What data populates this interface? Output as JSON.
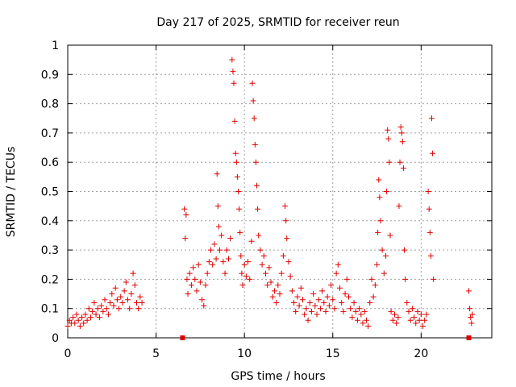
{
  "chart_data": {
    "type": "scatter",
    "title": "Day 217 of 2025, SRMTID for receiver reun",
    "xlabel": "GPS time / hours",
    "ylabel": "SRMTID / TECUs",
    "xlim": [
      0,
      24
    ],
    "ylim": [
      0,
      1
    ],
    "xticks": [
      0,
      5,
      10,
      15,
      20
    ],
    "xtick_labels": [
      "0",
      "5",
      "10",
      "15",
      "20"
    ],
    "yticks": [
      0,
      0.1,
      0.2,
      0.3,
      0.4,
      0.5,
      0.6,
      0.7,
      0.8,
      0.9,
      1
    ],
    "ytick_labels": [
      "0",
      "0.1",
      "0.2",
      "0.3",
      "0.4",
      "0.5",
      "0.6",
      "0.7",
      "0.8",
      "0.9",
      "1"
    ],
    "grid": true,
    "marker": "plus",
    "color": "#e00000",
    "series": [
      {
        "name": "SRMTID",
        "points": [
          [
            0.0,
            0.04
          ],
          [
            0.1,
            0.06
          ],
          [
            0.2,
            0.05
          ],
          [
            0.3,
            0.07
          ],
          [
            0.4,
            0.05
          ],
          [
            0.5,
            0.08
          ],
          [
            0.6,
            0.06
          ],
          [
            0.7,
            0.04
          ],
          [
            0.8,
            0.07
          ],
          [
            0.9,
            0.05
          ],
          [
            1.0,
            0.08
          ],
          [
            1.1,
            0.06
          ],
          [
            1.2,
            0.1
          ],
          [
            1.3,
            0.07
          ],
          [
            1.4,
            0.09
          ],
          [
            1.5,
            0.12
          ],
          [
            1.6,
            0.08
          ],
          [
            1.7,
            0.1
          ],
          [
            1.8,
            0.07
          ],
          [
            1.9,
            0.11
          ],
          [
            2.0,
            0.09
          ],
          [
            2.1,
            0.13
          ],
          [
            2.2,
            0.1
          ],
          [
            2.3,
            0.08
          ],
          [
            2.4,
            0.12
          ],
          [
            2.5,
            0.15
          ],
          [
            2.6,
            0.11
          ],
          [
            2.7,
            0.17
          ],
          [
            2.8,
            0.13
          ],
          [
            2.9,
            0.1
          ],
          [
            3.0,
            0.14
          ],
          [
            3.1,
            0.12
          ],
          [
            3.2,
            0.16
          ],
          [
            3.3,
            0.19
          ],
          [
            3.4,
            0.13
          ],
          [
            3.5,
            0.1
          ],
          [
            3.6,
            0.15
          ],
          [
            3.7,
            0.22
          ],
          [
            3.8,
            0.18
          ],
          [
            3.9,
            0.12
          ],
          [
            4.0,
            0.1
          ],
          [
            4.1,
            0.14
          ],
          [
            4.2,
            0.12
          ],
          [
            6.6,
            0.44
          ],
          [
            6.65,
            0.34
          ],
          [
            6.7,
            0.42
          ],
          [
            6.75,
            0.2
          ],
          [
            6.8,
            0.15
          ],
          [
            6.9,
            0.22
          ],
          [
            7.0,
            0.18
          ],
          [
            7.1,
            0.24
          ],
          [
            7.2,
            0.2
          ],
          [
            7.3,
            0.16
          ],
          [
            7.4,
            0.25
          ],
          [
            7.5,
            0.19
          ],
          [
            7.6,
            0.13
          ],
          [
            7.7,
            0.11
          ],
          [
            7.8,
            0.18
          ],
          [
            7.9,
            0.22
          ],
          [
            8.0,
            0.26
          ],
          [
            8.1,
            0.3
          ],
          [
            8.2,
            0.25
          ],
          [
            8.3,
            0.32
          ],
          [
            8.4,
            0.27
          ],
          [
            8.45,
            0.56
          ],
          [
            8.5,
            0.45
          ],
          [
            8.55,
            0.38
          ],
          [
            8.6,
            0.3
          ],
          [
            8.7,
            0.35
          ],
          [
            8.8,
            0.26
          ],
          [
            8.9,
            0.22
          ],
          [
            9.0,
            0.3
          ],
          [
            9.1,
            0.27
          ],
          [
            9.2,
            0.34
          ],
          [
            9.3,
            0.95
          ],
          [
            9.35,
            0.91
          ],
          [
            9.4,
            0.87
          ],
          [
            9.45,
            0.74
          ],
          [
            9.5,
            0.63
          ],
          [
            9.55,
            0.6
          ],
          [
            9.6,
            0.55
          ],
          [
            9.65,
            0.5
          ],
          [
            9.7,
            0.44
          ],
          [
            9.75,
            0.36
          ],
          [
            9.8,
            0.28
          ],
          [
            9.85,
            0.22
          ],
          [
            9.9,
            0.18
          ],
          [
            10.0,
            0.25
          ],
          [
            10.1,
            0.21
          ],
          [
            10.2,
            0.26
          ],
          [
            10.3,
            0.2
          ],
          [
            10.4,
            0.33
          ],
          [
            10.45,
            0.87
          ],
          [
            10.5,
            0.81
          ],
          [
            10.55,
            0.75
          ],
          [
            10.6,
            0.66
          ],
          [
            10.65,
            0.6
          ],
          [
            10.7,
            0.52
          ],
          [
            10.75,
            0.44
          ],
          [
            10.8,
            0.35
          ],
          [
            10.9,
            0.3
          ],
          [
            11.0,
            0.25
          ],
          [
            11.1,
            0.28
          ],
          [
            11.2,
            0.22
          ],
          [
            11.3,
            0.18
          ],
          [
            11.4,
            0.24
          ],
          [
            11.5,
            0.19
          ],
          [
            11.6,
            0.14
          ],
          [
            11.7,
            0.16
          ],
          [
            11.8,
            0.12
          ],
          [
            11.9,
            0.18
          ],
          [
            12.0,
            0.15
          ],
          [
            12.1,
            0.22
          ],
          [
            12.2,
            0.28
          ],
          [
            12.3,
            0.45
          ],
          [
            12.35,
            0.4
          ],
          [
            12.4,
            0.34
          ],
          [
            12.5,
            0.26
          ],
          [
            12.6,
            0.21
          ],
          [
            12.7,
            0.16
          ],
          [
            12.8,
            0.12
          ],
          [
            12.9,
            0.09
          ],
          [
            13.0,
            0.14
          ],
          [
            13.1,
            0.11
          ],
          [
            13.2,
            0.17
          ],
          [
            13.3,
            0.13
          ],
          [
            13.4,
            0.08
          ],
          [
            13.5,
            0.1
          ],
          [
            13.6,
            0.06
          ],
          [
            13.7,
            0.12
          ],
          [
            13.8,
            0.09
          ],
          [
            13.9,
            0.15
          ],
          [
            14.0,
            0.11
          ],
          [
            14.1,
            0.08
          ],
          [
            14.2,
            0.13
          ],
          [
            14.3,
            0.1
          ],
          [
            14.4,
            0.16
          ],
          [
            14.5,
            0.12
          ],
          [
            14.6,
            0.09
          ],
          [
            14.7,
            0.14
          ],
          [
            14.8,
            0.11
          ],
          [
            14.9,
            0.18
          ],
          [
            15.0,
            0.13
          ],
          [
            15.1,
            0.1
          ],
          [
            15.2,
            0.22
          ],
          [
            15.3,
            0.25
          ],
          [
            15.4,
            0.17
          ],
          [
            15.5,
            0.12
          ],
          [
            15.6,
            0.09
          ],
          [
            15.7,
            0.15
          ],
          [
            15.8,
            0.2
          ],
          [
            15.9,
            0.14
          ],
          [
            16.0,
            0.1
          ],
          [
            16.1,
            0.07
          ],
          [
            16.2,
            0.12
          ],
          [
            16.3,
            0.09
          ],
          [
            16.4,
            0.06
          ],
          [
            16.5,
            0.1
          ],
          [
            16.6,
            0.08
          ],
          [
            16.7,
            0.05
          ],
          [
            16.8,
            0.09
          ],
          [
            16.9,
            0.06
          ],
          [
            17.0,
            0.04
          ],
          [
            17.1,
            0.12
          ],
          [
            17.2,
            0.2
          ],
          [
            17.3,
            0.14
          ],
          [
            17.4,
            0.18
          ],
          [
            17.5,
            0.25
          ],
          [
            17.55,
            0.36
          ],
          [
            17.6,
            0.54
          ],
          [
            17.65,
            0.48
          ],
          [
            17.7,
            0.4
          ],
          [
            17.8,
            0.3
          ],
          [
            17.9,
            0.22
          ],
          [
            18.0,
            0.28
          ],
          [
            18.05,
            0.5
          ],
          [
            18.1,
            0.71
          ],
          [
            18.15,
            0.68
          ],
          [
            18.2,
            0.6
          ],
          [
            18.25,
            0.35
          ],
          [
            18.3,
            0.09
          ],
          [
            18.4,
            0.06
          ],
          [
            18.5,
            0.08
          ],
          [
            18.6,
            0.05
          ],
          [
            18.7,
            0.07
          ],
          [
            18.75,
            0.45
          ],
          [
            18.8,
            0.6
          ],
          [
            18.85,
            0.72
          ],
          [
            18.9,
            0.7
          ],
          [
            18.95,
            0.67
          ],
          [
            19.0,
            0.58
          ],
          [
            19.05,
            0.3
          ],
          [
            19.1,
            0.2
          ],
          [
            19.2,
            0.12
          ],
          [
            19.3,
            0.09
          ],
          [
            19.4,
            0.06
          ],
          [
            19.5,
            0.1
          ],
          [
            19.6,
            0.07
          ],
          [
            19.7,
            0.05
          ],
          [
            19.8,
            0.09
          ],
          [
            19.9,
            0.06
          ],
          [
            20.0,
            0.08
          ],
          [
            20.1,
            0.04
          ],
          [
            20.2,
            0.06
          ],
          [
            20.3,
            0.08
          ],
          [
            20.4,
            0.5
          ],
          [
            20.45,
            0.44
          ],
          [
            20.5,
            0.36
          ],
          [
            20.55,
            0.28
          ],
          [
            20.6,
            0.75
          ],
          [
            20.65,
            0.63
          ],
          [
            20.7,
            0.2
          ],
          [
            22.7,
            0.16
          ],
          [
            22.75,
            0.1
          ],
          [
            22.8,
            0.07
          ],
          [
            22.85,
            0.05
          ],
          [
            22.9,
            0.08
          ]
        ]
      }
    ],
    "zero_markers": [
      [
        6.5,
        0
      ],
      [
        22.7,
        0
      ]
    ]
  }
}
